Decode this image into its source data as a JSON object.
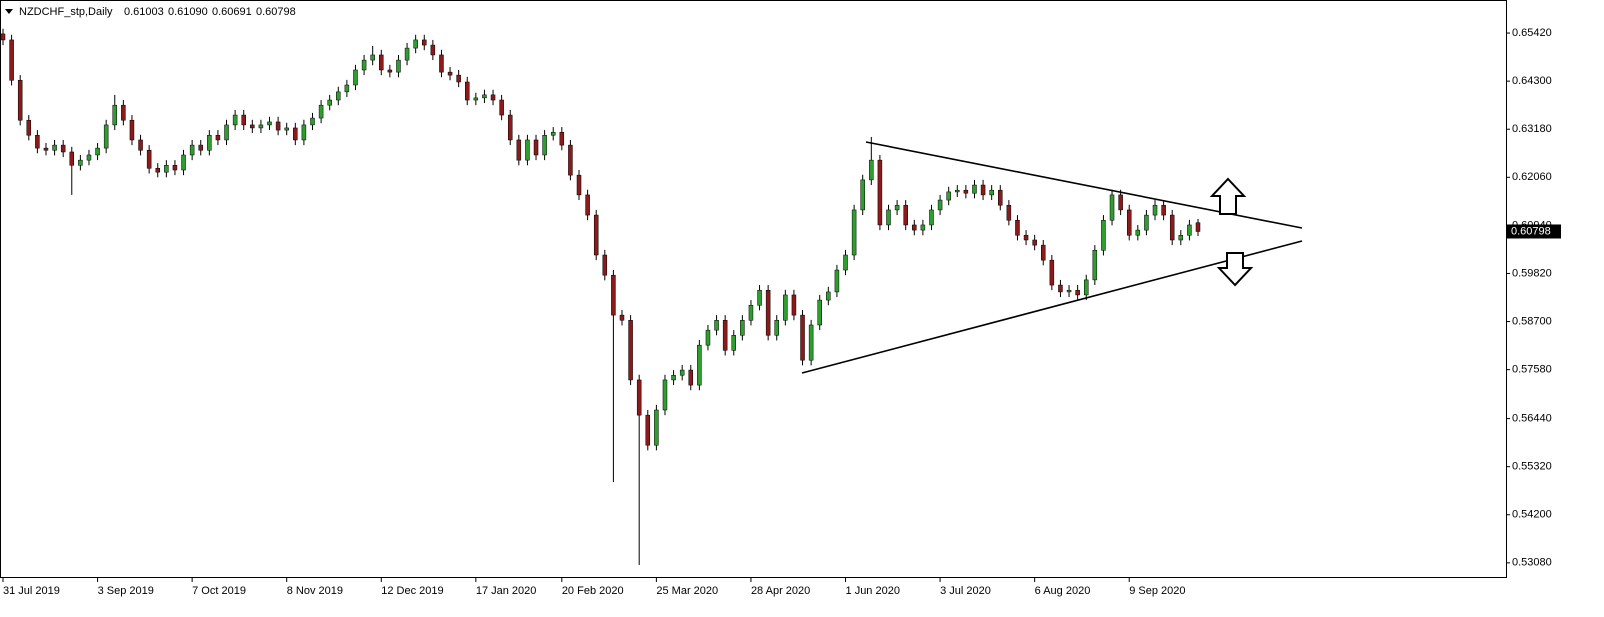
{
  "chart_data": {
    "type": "candlestick",
    "title": "NZDCHF_stp,Daily",
    "header_values": [
      "0.61003",
      "0.61090",
      "0.60691",
      "0.60798"
    ],
    "up_color": "#2e9e2e",
    "down_color": "#8b1a1a",
    "ylim": [
      0.5275,
      0.6619
    ],
    "yticks": [
      {
        "value": 0.6542,
        "label": "0.65420"
      },
      {
        "value": 0.643,
        "label": "0.64300"
      },
      {
        "value": 0.6318,
        "label": "0.63180"
      },
      {
        "value": 0.6206,
        "label": "0.62060"
      },
      {
        "value": 0.6094,
        "label": "0.60940"
      },
      {
        "value": 0.5982,
        "label": "0.59820"
      },
      {
        "value": 0.587,
        "label": "0.58700"
      },
      {
        "value": 0.5758,
        "label": "0.57580"
      },
      {
        "value": 0.5644,
        "label": "0.56440"
      },
      {
        "value": 0.5532,
        "label": "0.55320"
      },
      {
        "value": 0.542,
        "label": "0.54200"
      },
      {
        "value": 0.5308,
        "label": "0.53080"
      }
    ],
    "last_price": {
      "value": 0.60798,
      "label": "0.60798"
    },
    "categories": [
      "31 Jul 2019",
      null,
      null,
      null,
      null,
      null,
      null,
      null,
      null,
      null,
      null,
      "3 Sep 2019",
      null,
      null,
      null,
      null,
      null,
      null,
      null,
      null,
      null,
      null,
      "7 Oct 2019",
      null,
      null,
      null,
      null,
      null,
      null,
      null,
      null,
      null,
      null,
      "8 Nov 2019",
      null,
      null,
      null,
      null,
      null,
      null,
      null,
      null,
      null,
      null,
      "12 Dec 2019",
      null,
      null,
      null,
      null,
      null,
      null,
      null,
      null,
      null,
      null,
      "17 Jan 2020",
      null,
      null,
      null,
      null,
      null,
      null,
      null,
      null,
      null,
      "20 Feb 2020",
      null,
      null,
      null,
      null,
      null,
      null,
      null,
      null,
      null,
      null,
      "25 Mar 2020",
      null,
      null,
      null,
      null,
      null,
      null,
      null,
      null,
      null,
      null,
      "28 Apr 2020",
      null,
      null,
      null,
      null,
      null,
      null,
      null,
      null,
      null,
      null,
      "1 Jun 2020",
      null,
      null,
      null,
      null,
      null,
      null,
      null,
      null,
      null,
      null,
      "3 Jul 2020",
      null,
      null,
      null,
      null,
      null,
      null,
      null,
      null,
      null,
      null,
      "6 Aug 2020",
      null,
      null,
      null,
      null,
      null,
      null,
      null,
      null,
      null,
      null,
      "9 Sep 2020",
      null,
      null,
      null,
      null,
      null,
      null,
      null,
      null
    ],
    "open": [
      0.654,
      0.6526,
      0.6432,
      0.6339,
      0.6304,
      0.6274,
      0.6269,
      0.6281,
      0.6265,
      0.6234,
      0.6246,
      0.6258,
      0.6274,
      0.6328,
      0.6374,
      0.6339,
      0.6293,
      0.6269,
      0.6227,
      0.6218,
      0.6234,
      0.6223,
      0.6258,
      0.6281,
      0.6269,
      0.6304,
      0.6293,
      0.6328,
      0.6351,
      0.6328,
      0.6321,
      0.6328,
      0.6335,
      0.6316,
      0.6321,
      0.6293,
      0.6328,
      0.6344,
      0.6374,
      0.6386,
      0.6405,
      0.6421,
      0.6456,
      0.6479,
      0.6491,
      0.6456,
      0.6451,
      0.6479,
      0.6507,
      0.6526,
      0.6514,
      0.6491,
      0.6451,
      0.6444,
      0.6428,
      0.6386,
      0.6391,
      0.6398,
      0.6386,
      0.6351,
      0.6293,
      0.6246,
      0.6293,
      0.6258,
      0.6304,
      0.6311,
      0.6281,
      0.6211,
      0.6165,
      0.6118,
      0.6025,
      0.5978,
      0.5885,
      0.5873,
      0.5734,
      0.5652,
      0.5582,
      0.5664,
      0.5734,
      0.5745,
      0.5757,
      0.5722,
      0.5815,
      0.585,
      0.5873,
      0.5803,
      0.5838,
      0.5873,
      0.5908,
      0.5943,
      0.5838,
      0.5873,
      0.5932,
      0.5885,
      0.578,
      0.5862,
      0.592,
      0.5939,
      0.599,
      0.6025,
      0.613,
      0.62,
      0.6246,
      0.6095,
      0.613,
      0.6141,
      0.6095,
      0.6083,
      0.6095,
      0.613,
      0.6153,
      0.6172,
      0.6176,
      0.6169,
      0.6188,
      0.6165,
      0.6176,
      0.6141,
      0.6106,
      0.6071,
      0.606,
      0.6048,
      0.6013,
      0.5955,
      0.5939,
      0.5943,
      0.5932,
      0.5967,
      0.6036,
      0.6106,
      0.6165,
      0.613,
      0.6071,
      0.6083,
      0.6118,
      0.6141,
      0.6118,
      0.606,
      0.6071,
      0.61003
    ],
    "high": [
      0.6552,
      0.6538,
      0.6444,
      0.6351,
      0.6316,
      0.6286,
      0.6293,
      0.6293,
      0.6277,
      0.6258,
      0.627,
      0.6286,
      0.634,
      0.6398,
      0.6386,
      0.6351,
      0.6305,
      0.6281,
      0.6239,
      0.6246,
      0.6246,
      0.627,
      0.6293,
      0.6293,
      0.6316,
      0.6316,
      0.634,
      0.6363,
      0.6363,
      0.634,
      0.634,
      0.6347,
      0.6347,
      0.6333,
      0.6333,
      0.634,
      0.6356,
      0.6386,
      0.6398,
      0.6417,
      0.6433,
      0.6468,
      0.6491,
      0.6512,
      0.6503,
      0.6468,
      0.6491,
      0.6519,
      0.6538,
      0.6538,
      0.6526,
      0.6503,
      0.6463,
      0.6456,
      0.644,
      0.6403,
      0.641,
      0.641,
      0.6398,
      0.6363,
      0.6305,
      0.6305,
      0.6305,
      0.6316,
      0.6323,
      0.6323,
      0.6293,
      0.6223,
      0.6177,
      0.613,
      0.6037,
      0.599,
      0.5897,
      0.5885,
      0.5746,
      0.5664,
      0.5676,
      0.5746,
      0.5757,
      0.5769,
      0.5769,
      0.5827,
      0.5862,
      0.5885,
      0.5885,
      0.585,
      0.5885,
      0.592,
      0.5955,
      0.5955,
      0.5885,
      0.5944,
      0.5944,
      0.5897,
      0.5874,
      0.5932,
      0.5951,
      0.6002,
      0.6037,
      0.6142,
      0.6212,
      0.63,
      0.6258,
      0.6142,
      0.6153,
      0.6153,
      0.6107,
      0.6107,
      0.6142,
      0.6165,
      0.6184,
      0.6188,
      0.6188,
      0.62,
      0.62,
      0.6188,
      0.6188,
      0.6153,
      0.6118,
      0.6083,
      0.6072,
      0.606,
      0.6025,
      0.5967,
      0.5955,
      0.5955,
      0.5979,
      0.6048,
      0.6118,
      0.6177,
      0.6177,
      0.6142,
      0.6095,
      0.613,
      0.6153,
      0.6153,
      0.613,
      0.6083,
      0.6107,
      0.6109
    ],
    "low": [
      0.6514,
      0.642,
      0.6327,
      0.6292,
      0.6262,
      0.6257,
      0.6257,
      0.6253,
      0.6165,
      0.6222,
      0.6234,
      0.6246,
      0.6262,
      0.6316,
      0.6327,
      0.6281,
      0.6257,
      0.6215,
      0.6206,
      0.6206,
      0.6211,
      0.6211,
      0.6246,
      0.6257,
      0.6257,
      0.6281,
      0.6281,
      0.6316,
      0.6316,
      0.6309,
      0.6309,
      0.6316,
      0.6304,
      0.6304,
      0.6281,
      0.6281,
      0.6316,
      0.6332,
      0.6362,
      0.6374,
      0.6393,
      0.6409,
      0.6444,
      0.6467,
      0.6444,
      0.6439,
      0.6439,
      0.6467,
      0.6495,
      0.6502,
      0.6479,
      0.6439,
      0.6432,
      0.6416,
      0.6374,
      0.6374,
      0.6379,
      0.6374,
      0.6339,
      0.6281,
      0.6234,
      0.6234,
      0.6246,
      0.6246,
      0.6292,
      0.6269,
      0.6199,
      0.6153,
      0.6106,
      0.6013,
      0.5966,
      0.5496,
      0.5861,
      0.5722,
      0.5303,
      0.557,
      0.557,
      0.5652,
      0.5722,
      0.5733,
      0.571,
      0.571,
      0.5803,
      0.5838,
      0.5791,
      0.5791,
      0.5826,
      0.5861,
      0.5896,
      0.5826,
      0.5826,
      0.5861,
      0.5873,
      0.5768,
      0.5768,
      0.585,
      0.5908,
      0.5927,
      0.5978,
      0.6013,
      0.6118,
      0.6188,
      0.6083,
      0.6083,
      0.6118,
      0.6083,
      0.6071,
      0.6071,
      0.6083,
      0.6118,
      0.6141,
      0.616,
      0.6157,
      0.6157,
      0.6153,
      0.6153,
      0.6129,
      0.6094,
      0.6059,
      0.6048,
      0.6036,
      0.6001,
      0.5943,
      0.5927,
      0.5927,
      0.592,
      0.592,
      0.5955,
      0.6024,
      0.6094,
      0.6118,
      0.6059,
      0.6059,
      0.6071,
      0.6106,
      0.6106,
      0.6048,
      0.6048,
      0.6059,
      0.60691
    ],
    "close": [
      0.6526,
      0.6432,
      0.6339,
      0.6304,
      0.6274,
      0.6269,
      0.6281,
      0.6265,
      0.6234,
      0.6246,
      0.6258,
      0.6274,
      0.6328,
      0.6374,
      0.6339,
      0.6293,
      0.6269,
      0.6227,
      0.6218,
      0.6234,
      0.6223,
      0.6258,
      0.6281,
      0.6269,
      0.6304,
      0.6293,
      0.6328,
      0.6351,
      0.6328,
      0.6321,
      0.6328,
      0.6335,
      0.6316,
      0.6321,
      0.6293,
      0.6328,
      0.6344,
      0.6374,
      0.6386,
      0.6405,
      0.6421,
      0.6456,
      0.6479,
      0.6491,
      0.6456,
      0.6451,
      0.6479,
      0.6507,
      0.6526,
      0.6514,
      0.6491,
      0.6451,
      0.6444,
      0.6428,
      0.6386,
      0.6391,
      0.6398,
      0.6386,
      0.6351,
      0.6293,
      0.6246,
      0.6293,
      0.6258,
      0.6304,
      0.6311,
      0.6281,
      0.6211,
      0.6165,
      0.6118,
      0.6025,
      0.5978,
      0.5885,
      0.5873,
      0.5734,
      0.5652,
      0.5582,
      0.5664,
      0.5734,
      0.5745,
      0.5757,
      0.5722,
      0.5815,
      0.585,
      0.5873,
      0.5803,
      0.5838,
      0.5873,
      0.5908,
      0.5943,
      0.5838,
      0.5873,
      0.5932,
      0.5885,
      0.578,
      0.5862,
      0.592,
      0.5939,
      0.599,
      0.6025,
      0.613,
      0.62,
      0.6246,
      0.6095,
      0.613,
      0.6141,
      0.6095,
      0.6083,
      0.6095,
      0.613,
      0.6153,
      0.6172,
      0.6176,
      0.6169,
      0.6188,
      0.6165,
      0.6176,
      0.6141,
      0.6106,
      0.6071,
      0.606,
      0.6048,
      0.6013,
      0.5955,
      0.5939,
      0.5943,
      0.5932,
      0.5967,
      0.6036,
      0.6106,
      0.6165,
      0.613,
      0.6071,
      0.6083,
      0.6118,
      0.6141,
      0.6118,
      0.606,
      0.6071,
      0.6095,
      0.60798
    ]
  }
}
